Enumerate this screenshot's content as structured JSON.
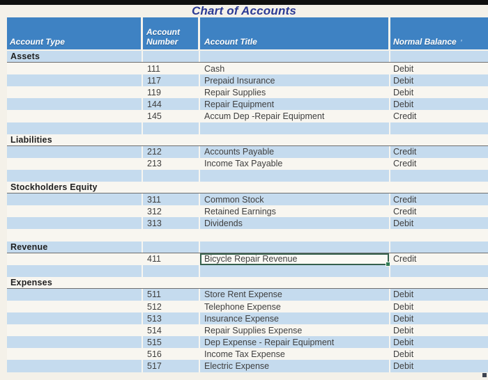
{
  "title": "Chart of Accounts",
  "table": {
    "columns": [
      "Account Type",
      "Account Number",
      "Account Title",
      "Normal Balance"
    ],
    "sections": [
      {
        "name": "Assets",
        "accounts": [
          {
            "number": "111",
            "title": "Cash",
            "balance": "Debit"
          },
          {
            "number": "117",
            "title": "Prepaid Insurance",
            "balance": "Debit"
          },
          {
            "number": "119",
            "title": "Repair Supplies",
            "balance": "Debit"
          },
          {
            "number": "144",
            "title": "Repair Equipment",
            "balance": "Debit"
          },
          {
            "number": "145",
            "title": "Accum Dep -Repair Equipment",
            "balance": "Credit"
          }
        ]
      },
      {
        "name": "Liabilities",
        "accounts": [
          {
            "number": "212",
            "title": "Accounts Payable",
            "balance": "Credit"
          },
          {
            "number": "213",
            "title": "Income Tax Payable",
            "balance": "Credit"
          }
        ]
      },
      {
        "name": "Stockholders Equity",
        "accounts": [
          {
            "number": "311",
            "title": "Common Stock",
            "balance": "Credit"
          },
          {
            "number": "312",
            "title": "Retained Earnings",
            "balance": "Credit"
          },
          {
            "number": "313",
            "title": "Dividends",
            "balance": "Debit"
          }
        ]
      },
      {
        "name": "Revenue",
        "accounts": [
          {
            "number": "411",
            "title": "Bicycle Repair Revenue",
            "balance": "Credit",
            "selected": true
          }
        ]
      },
      {
        "name": "Expenses",
        "accounts": [
          {
            "number": "511",
            "title": "Store Rent Expense",
            "balance": "Debit"
          },
          {
            "number": "512",
            "title": "Telephone Expense",
            "balance": "Debit"
          },
          {
            "number": "513",
            "title": "Insurance Expense",
            "balance": "Debit"
          },
          {
            "number": "514",
            "title": "Repair Supplies Expense",
            "balance": "Debit"
          },
          {
            "number": "515",
            "title": "Dep Expense - Repair Equipment",
            "balance": "Debit"
          },
          {
            "number": "516",
            "title": "Income Tax Expense",
            "balance": "Debit"
          },
          {
            "number": "517",
            "title": "Electric Expense",
            "balance": "Debit"
          }
        ]
      }
    ]
  },
  "icons": {
    "normal_balance_mark": "′",
    "fill_handle": "square",
    "corner_artifact": "square"
  },
  "colors": {
    "header_bg": "#3e82c3",
    "band_blue": "#c5dbee",
    "band_white": "#f8f6f0",
    "page_bg": "#f4f1e9",
    "top_bar": "#101010",
    "title_text": "#2b3a94",
    "body_text": "#3e3e3e",
    "section_text": "#1f1f1f",
    "section_underline": "#6e6e6e",
    "selection_border": "#35604c",
    "fill_handle": "#2f7d54"
  }
}
